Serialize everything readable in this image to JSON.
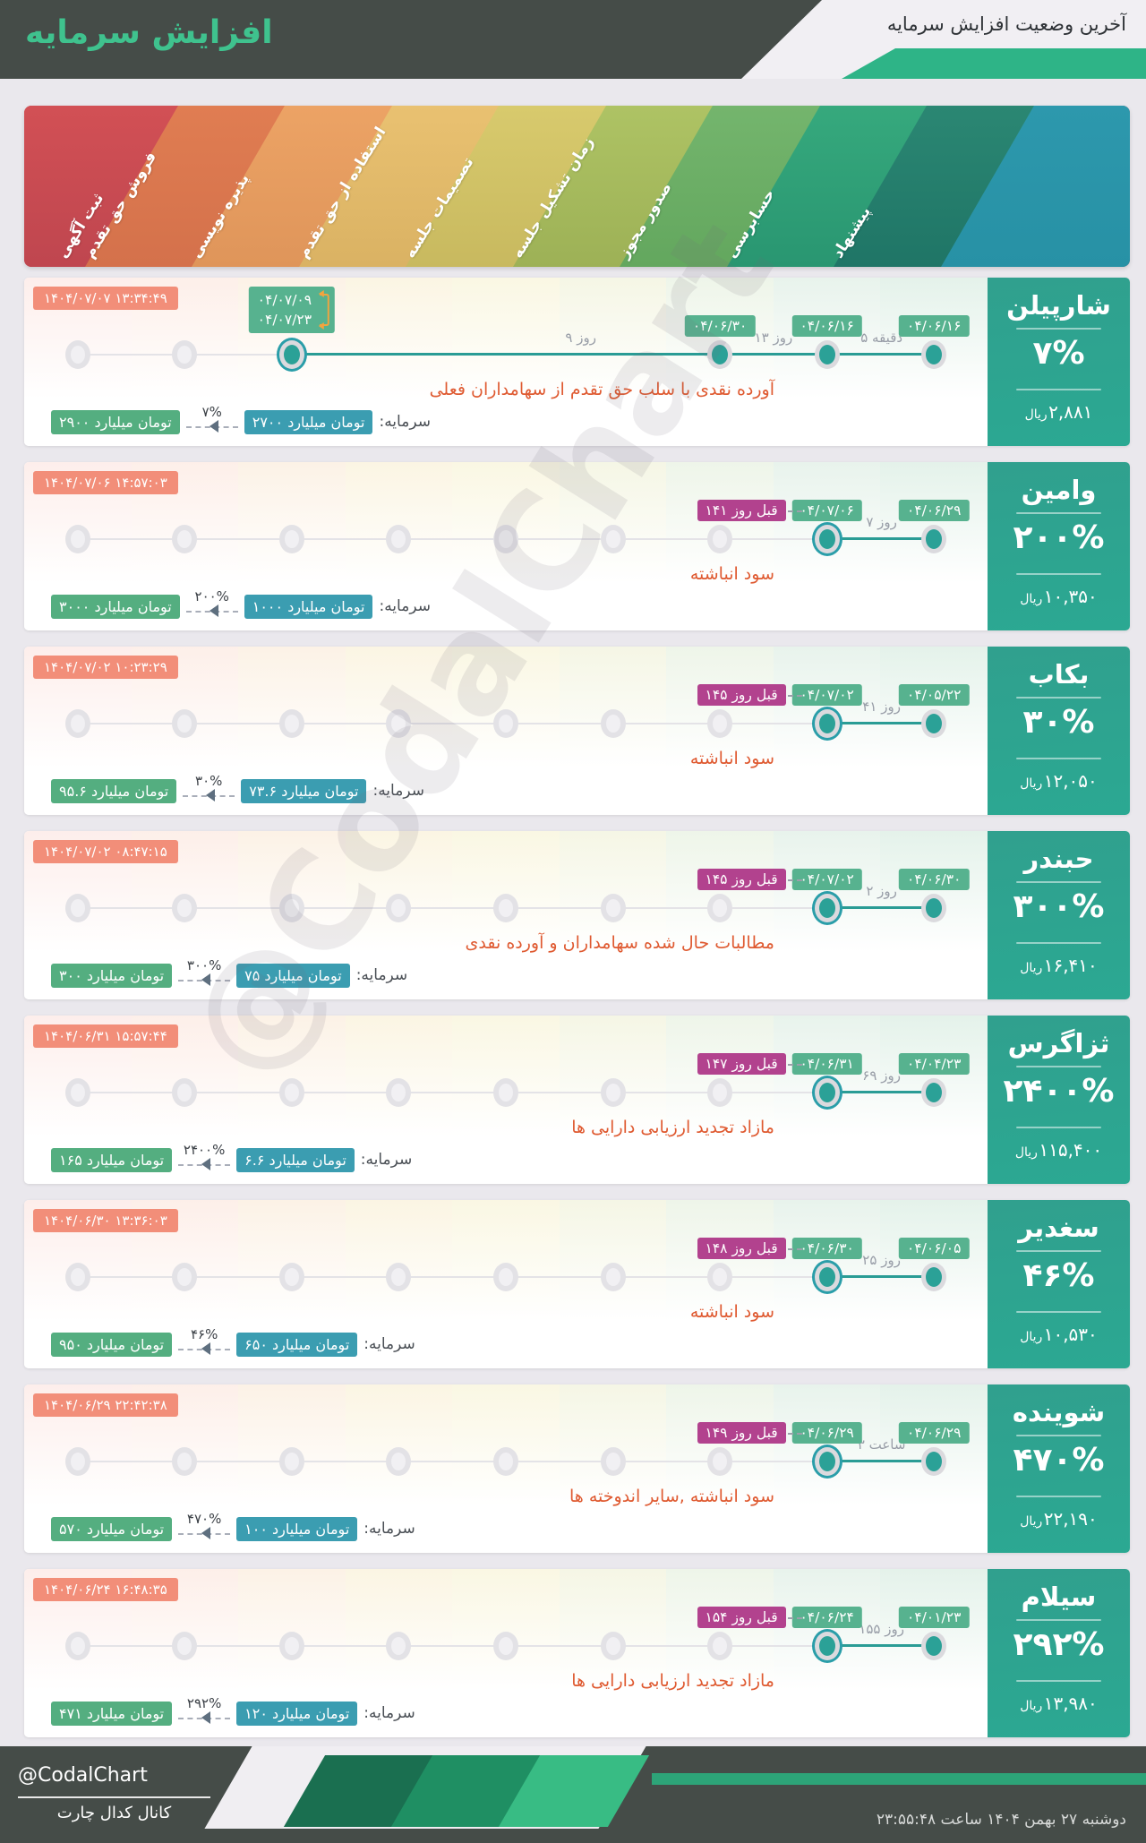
{
  "header": {
    "title": "افزایش سرمایه",
    "subtitle": "آخرین وضعیت افزایش سرمایه"
  },
  "colors": {
    "header_dark": "#454c48",
    "header_green": "#2eb487",
    "title_green": "#3fc28e",
    "sidebar_teal": "#2da08e",
    "timestamp_badge": "#f28e79",
    "date_badge": "#57b28f",
    "days_badge": "#b2428e",
    "capital_before_badge": "#3b9db1",
    "capital_after_badge": "#54ae80",
    "description_orange": "#df5a31",
    "timeline_teal": "#2a9c95",
    "band_end_stripe": "#2d98ad"
  },
  "stages": [
    {
      "label": "ثبت آگهی",
      "color1": "#d25055",
      "color2": "#bf464f",
      "tint": "#fdeeeb"
    },
    {
      "label": "فروش حق تقدم",
      "color1": "#e07d52",
      "color2": "#d4714b",
      "tint": "#fdefe9"
    },
    {
      "label": "پذیره نویسی",
      "color1": "#eca365",
      "color2": "#df955a",
      "tint": "#fcf2e6"
    },
    {
      "label": "استفاده از حق تقدم",
      "color1": "#e9c171",
      "color2": "#dab263",
      "tint": "#fbf5e3"
    },
    {
      "label": "تصمیمات جلسه",
      "color1": "#d8ca6d",
      "color2": "#c8b95f",
      "tint": "#faf7e3"
    },
    {
      "label": "زمان تشکیل جلسه",
      "color1": "#aec364",
      "color2": "#9db156",
      "tint": "#f5f6e5"
    },
    {
      "label": "صدور مجوز",
      "color1": "#74b56d",
      "color2": "#63a75e",
      "tint": "#eef5e9"
    },
    {
      "label": "حسابرسی",
      "color1": "#36a97d",
      "color2": "#299671",
      "tint": "#e8f3ec"
    },
    {
      "label": "پیشنهاد",
      "color1": "#2b8773",
      "color2": "#1f7566",
      "tint": "#e4f2ea"
    }
  ],
  "rows": [
    {
      "name": "شارپیلن",
      "percent": "۷%",
      "price": "۲,۸۸۱",
      "price_unit": "ریال",
      "timestamp": "۱۴۰۴/۰۷/۰۷ ۱۳:۳۴:۴۹",
      "description": "آورده نقدی با سلب حق تقدم از سهامداران فعلی",
      "capital_label": "سرمایه:",
      "capital_before": "۲۷۰۰ میلیارد تومان",
      "capital_percent": "۷%",
      "capital_after": "۲۹۰۰ میلیارد تومان",
      "days_ago": null,
      "timeline": {
        "gray_cols": [
          1,
          2
        ],
        "ringed_col": 3,
        "milestones": [
          {
            "col": 3,
            "dates": [
              "۰۴/۰۷/۰۹",
              "۰۴/۰۷/۲۳"
            ],
            "ringed": true,
            "bracket": true
          },
          {
            "col": 7,
            "date": "۰۴/۰۶/۳۰"
          },
          {
            "col": 8,
            "date": "۰۴/۰۶/۱۶"
          },
          {
            "col": 9,
            "date": "۰۴/۰۶/۱۶"
          }
        ],
        "gaps": [
          {
            "at_col": 5.7,
            "label": "۹ روز"
          },
          {
            "at_col": 7.5,
            "label": "۱۳ روز"
          },
          {
            "at_col": 8.51,
            "label": "۵ دقیقه"
          }
        ]
      }
    },
    {
      "name": "وامین",
      "percent": "۲۰۰%",
      "price": "۱۰,۳۵۰",
      "price_unit": "ریال",
      "timestamp": "۱۴۰۴/۰۷/۰۶ ۱۴:۵۷:۰۳",
      "description": "سود انباشته",
      "capital_label": "سرمایه:",
      "capital_before": "۱۰۰۰ میلیارد تومان",
      "capital_percent": "۲۰۰%",
      "capital_after": "۳۰۰۰ میلیارد تومان",
      "days_ago": "۱۴۱ روز قبل",
      "timeline": {
        "gray_cols": [
          1,
          2,
          3,
          4,
          5,
          6,
          7
        ],
        "ringed_col": 8,
        "milestones": [
          {
            "col": 8,
            "date": "۰۴/۰۷/۰۶",
            "ringed": true
          },
          {
            "col": 9,
            "date": "۰۴/۰۶/۲۹"
          }
        ],
        "gaps": [
          {
            "at_col": 8.51,
            "label": "۷ روز"
          }
        ]
      }
    },
    {
      "name": "بکاب",
      "percent": "۳۰%",
      "price": "۱۲,۰۵۰",
      "price_unit": "ریال",
      "timestamp": "۱۴۰۴/۰۷/۰۲ ۱۰:۲۳:۲۹",
      "description": "سود انباشته",
      "capital_label": "سرمایه:",
      "capital_before": "۷۳.۶ میلیارد تومان",
      "capital_percent": "۳۰%",
      "capital_after": "۹۵.۶ میلیارد تومان",
      "days_ago": "۱۴۵ روز قبل",
      "timeline": {
        "gray_cols": [
          1,
          2,
          3,
          4,
          5,
          6,
          7
        ],
        "ringed_col": 8,
        "milestones": [
          {
            "col": 8,
            "date": "۰۴/۰۷/۰۲",
            "ringed": true
          },
          {
            "col": 9,
            "date": "۰۴/۰۵/۲۲"
          }
        ],
        "gaps": [
          {
            "at_col": 8.51,
            "label": "۴۱ روز"
          }
        ]
      }
    },
    {
      "name": "حبندر",
      "percent": "۳۰۰%",
      "price": "۱۶,۴۱۰",
      "price_unit": "ریال",
      "timestamp": "۱۴۰۴/۰۷/۰۲ ۰۸:۴۷:۱۵",
      "description": "مطالبات حال شده سهامداران و آورده نقدی",
      "capital_label": "سرمایه:",
      "capital_before": "۷۵ میلیارد تومان",
      "capital_percent": "۳۰۰%",
      "capital_after": "۳۰۰ میلیارد تومان",
      "days_ago": "۱۴۵ روز قبل",
      "timeline": {
        "gray_cols": [
          1,
          2,
          3,
          4,
          5,
          6,
          7
        ],
        "ringed_col": 8,
        "milestones": [
          {
            "col": 8,
            "date": "۰۴/۰۷/۰۲",
            "ringed": true
          },
          {
            "col": 9,
            "date": "۰۴/۰۶/۳۰"
          }
        ],
        "gaps": [
          {
            "at_col": 8.51,
            "label": "۲ روز"
          }
        ]
      }
    },
    {
      "name": "ثزاگرس",
      "percent": "۲۴۰۰%",
      "price": "۱۱۵,۴۰۰",
      "price_unit": "ریال",
      "timestamp": "۱۴۰۴/۰۶/۳۱ ۱۵:۵۷:۴۴",
      "description": "مازاد تجدید ارزیابی دارایی ها",
      "capital_label": "سرمایه:",
      "capital_before": "۶.۶ میلیارد تومان",
      "capital_percent": "۲۴۰۰%",
      "capital_after": "۱۶۵ میلیارد تومان",
      "days_ago": "۱۴۷ روز قبل",
      "timeline": {
        "gray_cols": [
          1,
          2,
          3,
          4,
          5,
          6,
          7
        ],
        "ringed_col": 8,
        "milestones": [
          {
            "col": 8,
            "date": "۰۴/۰۶/۳۱",
            "ringed": true
          },
          {
            "col": 9,
            "date": "۰۴/۰۴/۲۳"
          }
        ],
        "gaps": [
          {
            "at_col": 8.51,
            "label": "۶۹ روز"
          }
        ]
      }
    },
    {
      "name": "سغدیر",
      "percent": "۴۶%",
      "price": "۱۰,۵۳۰",
      "price_unit": "ریال",
      "timestamp": "۱۴۰۴/۰۶/۳۰ ۱۳:۳۶:۰۳",
      "description": "سود انباشته",
      "capital_label": "سرمایه:",
      "capital_before": "۶۵۰ میلیارد تومان",
      "capital_percent": "۴۶%",
      "capital_after": "۹۵۰ میلیارد تومان",
      "days_ago": "۱۴۸ روز قبل",
      "timeline": {
        "gray_cols": [
          1,
          2,
          3,
          4,
          5,
          6,
          7
        ],
        "ringed_col": 8,
        "milestones": [
          {
            "col": 8,
            "date": "۰۴/۰۶/۳۰",
            "ringed": true
          },
          {
            "col": 9,
            "date": "۰۴/۰۶/۰۵"
          }
        ],
        "gaps": [
          {
            "at_col": 8.51,
            "label": "۲۵ روز"
          }
        ]
      }
    },
    {
      "name": "شوینده",
      "percent": "۴۷۰%",
      "price": "۲۲,۱۹۰",
      "price_unit": "ریال",
      "timestamp": "۱۴۰۴/۰۶/۲۹ ۲۲:۴۲:۳۸",
      "description": "سود انباشته ,سایر اندوخته ها",
      "capital_label": "سرمایه:",
      "capital_before": "۱۰۰ میلیارد تومان",
      "capital_percent": "۴۷۰%",
      "capital_after": "۵۷۰ میلیارد تومان",
      "days_ago": "۱۴۹ روز قبل",
      "timeline": {
        "gray_cols": [
          1,
          2,
          3,
          4,
          5,
          6,
          7
        ],
        "ringed_col": 8,
        "milestones": [
          {
            "col": 8,
            "date": "۰۴/۰۶/۲۹",
            "ringed": true
          },
          {
            "col": 9,
            "date": "۰۴/۰۶/۲۹"
          }
        ],
        "gaps": [
          {
            "at_col": 8.51,
            "label": "۳ ساعت"
          }
        ]
      }
    },
    {
      "name": "سیلام",
      "percent": "۲۹۲%",
      "price": "۱۳,۹۸۰",
      "price_unit": "ریال",
      "timestamp": "۱۴۰۴/۰۶/۲۴ ۱۶:۴۸:۳۵",
      "description": "مازاد تجدید ارزیابی دارایی ها",
      "capital_label": "سرمایه:",
      "capital_before": "۱۲۰ میلیارد تومان",
      "capital_percent": "۲۹۲%",
      "capital_after": "۴۷۱ میلیارد تومان",
      "days_ago": "۱۵۴ روز قبل",
      "timeline": {
        "gray_cols": [
          1,
          2,
          3,
          4,
          5,
          6,
          7
        ],
        "ringed_col": 8,
        "milestones": [
          {
            "col": 8,
            "date": "۰۴/۰۶/۲۴",
            "ringed": true
          },
          {
            "col": 9,
            "date": "۰۴/۰۱/۲۳"
          }
        ],
        "gaps": [
          {
            "at_col": 8.51,
            "label": "۱۵۵ روز"
          }
        ]
      }
    }
  ],
  "watermark": {
    "text": "@CodalChart"
  },
  "footer": {
    "handle": "@CodalChart",
    "channel": "کانال کدال چارت",
    "date": "دوشنبه ۲۷ بهمن ۱۴۰۴ ساعت ۲۳:۵۵:۴۸"
  }
}
